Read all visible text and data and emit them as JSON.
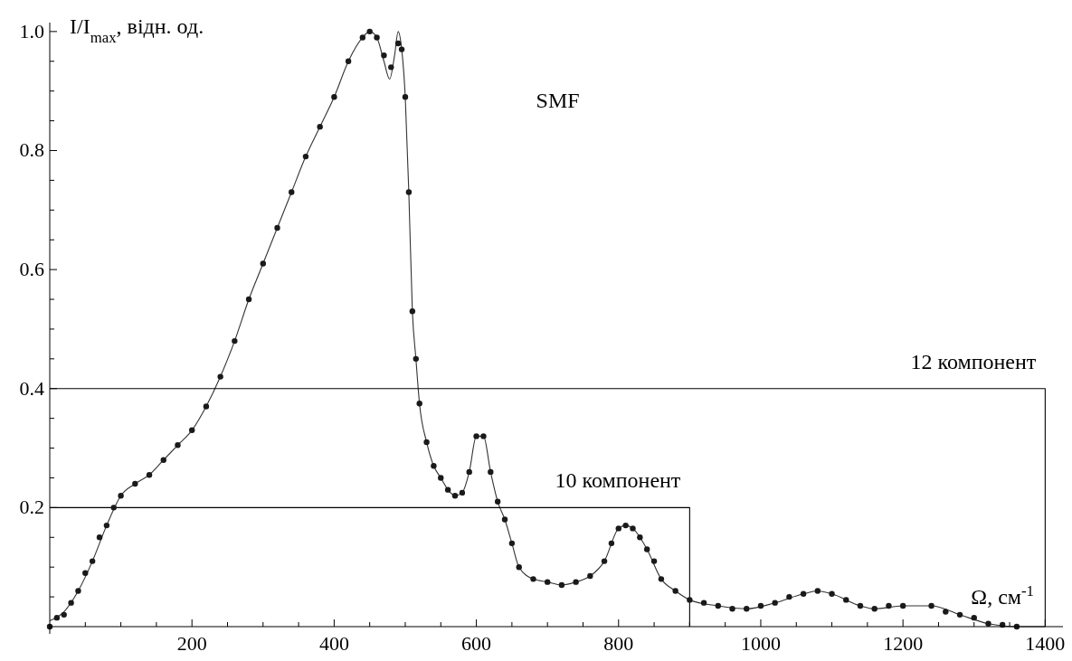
{
  "chart_data": {
    "type": "scatter",
    "xlabel": "Ω, см$^{-1}$",
    "ylabel": "I/I$_{max}$, відн. од.",
    "annotations": [
      "SMF"
    ],
    "xlim": [
      0,
      1425
    ],
    "ylim": [
      0,
      1.015
    ],
    "xticks": [
      {
        "value": 50,
        "label": null
      },
      {
        "value": 100,
        "label": null
      },
      {
        "value": 150,
        "label": null
      },
      200,
      {
        "value": 250,
        "label": null
      },
      {
        "value": 300,
        "label": null
      },
      {
        "value": 350,
        "label": null
      },
      400,
      {
        "value": 450,
        "label": null
      },
      {
        "value": 500,
        "label": null
      },
      {
        "value": 550,
        "label": null
      },
      600,
      {
        "value": 650,
        "label": null
      },
      {
        "value": 700,
        "label": null
      },
      {
        "value": 750,
        "label": null
      },
      800,
      {
        "value": 850,
        "label": null
      },
      {
        "value": 900,
        "label": null
      },
      {
        "value": 950,
        "label": null
      },
      1000,
      {
        "value": 1050,
        "label": null
      },
      {
        "value": 1100,
        "label": null
      },
      {
        "value": 1150,
        "label": null
      },
      1200,
      {
        "value": 1250,
        "label": null
      },
      {
        "value": 1300,
        "label": null
      },
      {
        "value": 1350,
        "label": null
      },
      1400
    ],
    "yticks": [
      {
        "value": 0.05,
        "label": null
      },
      {
        "value": 0.1,
        "label": null
      },
      {
        "value": 0.15,
        "label": null
      },
      0.2,
      {
        "value": 0.25,
        "label": null
      },
      {
        "value": 0.3,
        "label": null
      },
      {
        "value": 0.35,
        "label": null
      },
      0.4,
      {
        "value": 0.45,
        "label": null
      },
      {
        "value": 0.5,
        "label": null
      },
      {
        "value": 0.55,
        "label": null
      },
      0.6,
      {
        "value": 0.65,
        "label": null
      },
      {
        "value": 0.7,
        "label": null
      },
      {
        "value": 0.75,
        "label": null
      },
      0.8,
      {
        "value": 0.85,
        "label": null
      },
      {
        "value": 0.9,
        "label": null
      },
      {
        "value": 0.95,
        "label": null
      },
      {
        "value": 1,
        "label": "1.0"
      }
    ],
    "series": [
      {
        "marker": "circle",
        "color": "#1a1a1a",
        "x": [
          0,
          10,
          20,
          30,
          40,
          50,
          60,
          70,
          80,
          90,
          100,
          120,
          140,
          160,
          180,
          200,
          220,
          240,
          260,
          280,
          300,
          320,
          340,
          360,
          380,
          400,
          420,
          440,
          450,
          460,
          470,
          480,
          490,
          495,
          500,
          505,
          510,
          515,
          520,
          530,
          540,
          550,
          560,
          570,
          580,
          590,
          600,
          610,
          620,
          630,
          640,
          650,
          660,
          680,
          700,
          720,
          740,
          760,
          780,
          790,
          800,
          810,
          820,
          830,
          840,
          850,
          860,
          880,
          900,
          920,
          940,
          960,
          980,
          1000,
          1020,
          1040,
          1060,
          1080,
          1100,
          1120,
          1140,
          1160,
          1180,
          1200,
          1240,
          1260,
          1280,
          1300,
          1320,
          1340,
          1360
        ],
        "values": [
          0,
          0.015,
          0.02,
          0.04,
          0.06,
          0.09,
          0.11,
          0.15,
          0.17,
          0.2,
          0.22,
          0.24,
          0.255,
          0.28,
          0.305,
          0.33,
          0.37,
          0.42,
          0.48,
          0.55,
          0.61,
          0.67,
          0.73,
          0.79,
          0.84,
          0.89,
          0.95,
          0.99,
          1,
          0.99,
          0.96,
          0.94,
          0.98,
          0.97,
          0.89,
          0.73,
          0.53,
          0.45,
          0.375,
          0.31,
          0.27,
          0.25,
          0.23,
          0.22,
          0.225,
          0.26,
          0.32,
          0.32,
          0.26,
          0.21,
          0.18,
          0.14,
          0.1,
          0.08,
          0.075,
          0.07,
          0.075,
          0.085,
          0.11,
          0.14,
          0.165,
          0.17,
          0.165,
          0.15,
          0.13,
          0.11,
          0.08,
          0.06,
          0.045,
          0.04,
          0.035,
          0.03,
          0.03,
          0.035,
          0.04,
          0.05,
          0.055,
          0.06,
          0.055,
          0.045,
          0.035,
          0.03,
          0.035,
          0.035,
          0.035,
          0.025,
          0.02,
          0.015,
          0.005,
          0.003,
          0
        ]
      },
      {
        "type": "line",
        "marker": "none",
        "line_style": "solid",
        "color": "#333333",
        "x": [
          0,
          20,
          40,
          60,
          80,
          100,
          120,
          140,
          160,
          180,
          200,
          220,
          240,
          260,
          280,
          300,
          320,
          340,
          360,
          380,
          400,
          420,
          440,
          450,
          460,
          470,
          478,
          485,
          490,
          495,
          500,
          505,
          510,
          515,
          520,
          530,
          540,
          550,
          560,
          570,
          580,
          590,
          600,
          610,
          620,
          630,
          640,
          650,
          660,
          680,
          700,
          720,
          740,
          760,
          780,
          800,
          810,
          820,
          840,
          860,
          880,
          900,
          940,
          980,
          1020,
          1060,
          1080,
          1100,
          1140,
          1160,
          1200,
          1240,
          1280,
          1320,
          1360,
          1400
        ],
        "values": [
          0.01,
          0.025,
          0.06,
          0.11,
          0.17,
          0.22,
          0.24,
          0.255,
          0.28,
          0.305,
          0.33,
          0.37,
          0.42,
          0.48,
          0.55,
          0.61,
          0.67,
          0.73,
          0.79,
          0.84,
          0.89,
          0.95,
          0.99,
          1,
          0.99,
          0.95,
          0.92,
          0.96,
          1,
          0.97,
          0.89,
          0.73,
          0.53,
          0.45,
          0.375,
          0.31,
          0.27,
          0.25,
          0.23,
          0.22,
          0.225,
          0.26,
          0.32,
          0.32,
          0.26,
          0.21,
          0.18,
          0.14,
          0.1,
          0.08,
          0.075,
          0.07,
          0.075,
          0.085,
          0.11,
          0.165,
          0.17,
          0.165,
          0.13,
          0.08,
          0.06,
          0.045,
          0.035,
          0.03,
          0.04,
          0.055,
          0.06,
          0.055,
          0.035,
          0.03,
          0.035,
          0.035,
          0.02,
          0.005,
          0,
          0
        ]
      },
      {
        "type": "line",
        "marker": "none",
        "name": "10 компонент",
        "color": "#000000",
        "x": [
          0,
          900,
          900
        ],
        "values": [
          0.2,
          0.2,
          0
        ]
      },
      {
        "type": "line",
        "marker": "none",
        "name": "12 компонент",
        "color": "#000000",
        "x": [
          0,
          1400,
          1400
        ],
        "values": [
          0.4,
          0.4,
          0
        ]
      }
    ]
  }
}
